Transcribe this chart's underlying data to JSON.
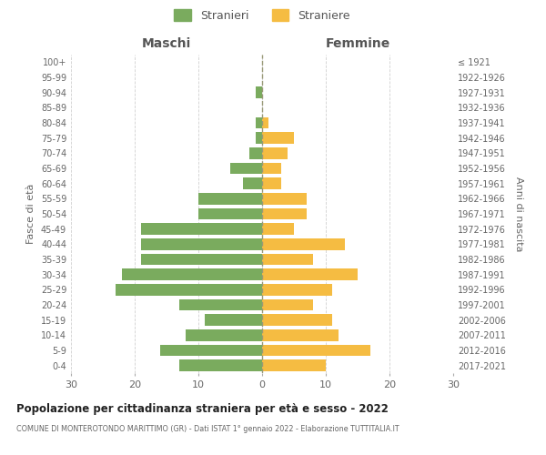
{
  "age_groups": [
    "0-4",
    "5-9",
    "10-14",
    "15-19",
    "20-24",
    "25-29",
    "30-34",
    "35-39",
    "40-44",
    "45-49",
    "50-54",
    "55-59",
    "60-64",
    "65-69",
    "70-74",
    "75-79",
    "80-84",
    "85-89",
    "90-94",
    "95-99",
    "100+"
  ],
  "birth_years": [
    "2017-2021",
    "2012-2016",
    "2007-2011",
    "2002-2006",
    "1997-2001",
    "1992-1996",
    "1987-1991",
    "1982-1986",
    "1977-1981",
    "1972-1976",
    "1967-1971",
    "1962-1966",
    "1957-1961",
    "1952-1956",
    "1947-1951",
    "1942-1946",
    "1937-1941",
    "1932-1936",
    "1927-1931",
    "1922-1926",
    "≤ 1921"
  ],
  "maschi": [
    13,
    16,
    12,
    9,
    13,
    23,
    22,
    19,
    19,
    19,
    10,
    10,
    3,
    5,
    2,
    1,
    1,
    0,
    1,
    0,
    0
  ],
  "femmine": [
    10,
    17,
    12,
    11,
    8,
    11,
    15,
    8,
    13,
    5,
    7,
    7,
    3,
    3,
    4,
    5,
    1,
    0,
    0,
    0,
    0
  ],
  "color_maschi": "#7aab5e",
  "color_femmine": "#f5bc42",
  "title": "Popolazione per cittadinanza straniera per età e sesso - 2022",
  "subtitle": "COMUNE DI MONTEROTONDO MARITTIMO (GR) - Dati ISTAT 1° gennaio 2022 - Elaborazione TUTTITALIA.IT",
  "xlabel_left": "Maschi",
  "xlabel_right": "Femmine",
  "ylabel_left": "Fasce di età",
  "ylabel_right": "Anni di nascita",
  "xlim": 30,
  "legend_stranieri": "Stranieri",
  "legend_straniere": "Straniere",
  "background_color": "#ffffff",
  "grid_color": "#d0d0d0"
}
